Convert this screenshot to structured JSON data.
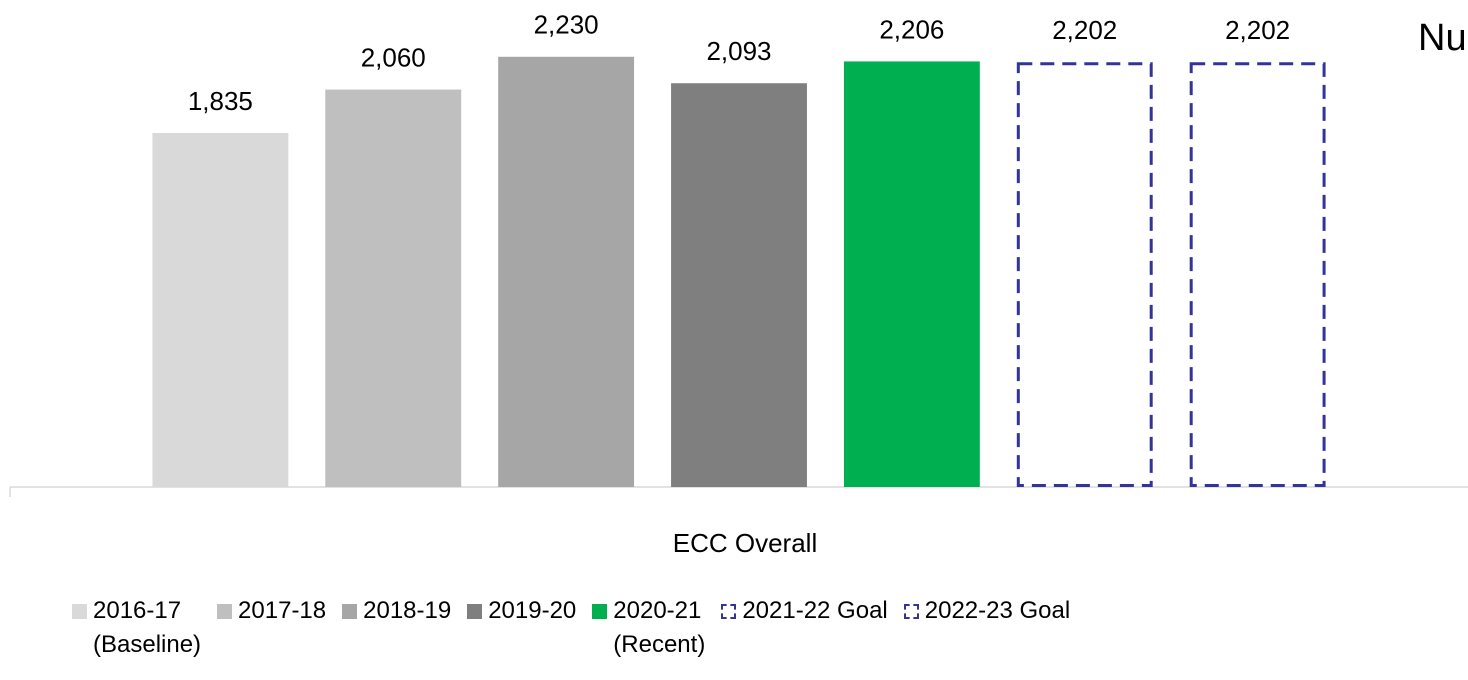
{
  "chart_data": {
    "type": "bar",
    "title": "Nu",
    "xlabel": "ECC Overall",
    "categories": [
      "ECC Overall"
    ],
    "ylim": [
      0,
      2400
    ],
    "series": [
      {
        "name": "2016-17\n(Baseline)",
        "color": "#d9d9d9",
        "values": [
          1835
        ],
        "value_labels": [
          "1,835"
        ],
        "dashed": false
      },
      {
        "name": "2017-18",
        "color": "#bfbfbf",
        "values": [
          2060
        ],
        "value_labels": [
          "2,060"
        ],
        "dashed": false
      },
      {
        "name": "2018-19",
        "color": "#a6a6a6",
        "values": [
          2230
        ],
        "value_labels": [
          "2,230"
        ],
        "dashed": false
      },
      {
        "name": "2019-20",
        "color": "#7f7f7f",
        "values": [
          2093
        ],
        "value_labels": [
          "2,093"
        ],
        "dashed": false
      },
      {
        "name": "2020-21\n(Recent)",
        "color": "#00b050",
        "values": [
          2206
        ],
        "value_labels": [
          "2,206"
        ],
        "dashed": false
      },
      {
        "name": "2021-22 Goal",
        "color": "#333399",
        "values": [
          2202
        ],
        "value_labels": [
          "2,202"
        ],
        "dashed": true
      },
      {
        "name": "2022-23 Goal",
        "color": "#333399",
        "values": [
          2202
        ],
        "value_labels": [
          "2,202"
        ],
        "dashed": true
      }
    ]
  }
}
